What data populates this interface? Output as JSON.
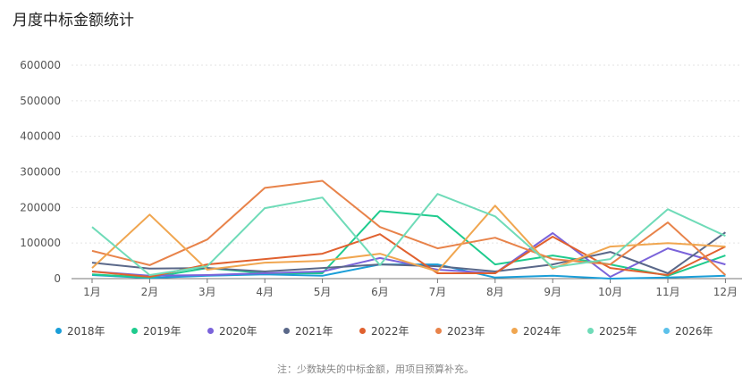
{
  "page": {
    "title": "月度中标金额统计",
    "note": "注：少数缺失的中标金额，用项目预算补充。"
  },
  "chart_data": {
    "type": "line",
    "title": "月度中标金额统计",
    "categories": [
      "1月",
      "2月",
      "3月",
      "4月",
      "5月",
      "6月",
      "7月",
      "8月",
      "9月",
      "10月",
      "11月",
      "12月"
    ],
    "ylim": [
      0,
      600000
    ],
    "yticks": [
      0,
      100000,
      200000,
      300000,
      400000,
      500000,
      600000
    ],
    "grid": true,
    "legend_position": "bottom",
    "series": [
      {
        "name": "2018年",
        "color": "#1a9ed8",
        "values": [
          10000,
          2000,
          8000,
          12000,
          8000,
          40000,
          40000,
          3000,
          8000,
          0,
          3000,
          8000
        ]
      },
      {
        "name": "2019年",
        "color": "#1fcb8e",
        "values": [
          12000,
          3000,
          30000,
          15000,
          15000,
          190000,
          175000,
          40000,
          65000,
          40000,
          8000,
          65000
        ]
      },
      {
        "name": "2020年",
        "color": "#7a63da",
        "values": [
          20000,
          8000,
          10000,
          15000,
          20000,
          58000,
          25000,
          15000,
          128000,
          5000,
          85000,
          40000
        ]
      },
      {
        "name": "2021年",
        "color": "#5a6889",
        "values": [
          45000,
          28000,
          30000,
          20000,
          30000,
          40000,
          35000,
          20000,
          40000,
          75000,
          15000,
          130000
        ]
      },
      {
        "name": "2022年",
        "color": "#e0612f",
        "values": [
          20000,
          5000,
          40000,
          55000,
          70000,
          125000,
          15000,
          15000,
          118000,
          30000,
          10000,
          90000
        ]
      },
      {
        "name": "2023年",
        "color": "#e8834a",
        "values": [
          78000,
          38000,
          110000,
          255000,
          275000,
          145000,
          85000,
          115000,
          55000,
          40000,
          158000,
          10000
        ]
      },
      {
        "name": "2024年",
        "color": "#f0a650",
        "values": [
          30000,
          180000,
          25000,
          45000,
          50000,
          70000,
          20000,
          205000,
          28000,
          90000,
          100000,
          90000
        ]
      },
      {
        "name": "2025年",
        "color": "#6fdbb8",
        "values": [
          145000,
          10000,
          35000,
          198000,
          228000,
          38000,
          238000,
          175000,
          32000,
          55000,
          195000,
          120000
        ]
      },
      {
        "name": "2026年",
        "color": "#5cc1ea",
        "values": [
          null,
          null,
          null,
          null,
          null,
          null,
          null,
          null,
          null,
          null,
          null,
          null
        ]
      }
    ]
  }
}
